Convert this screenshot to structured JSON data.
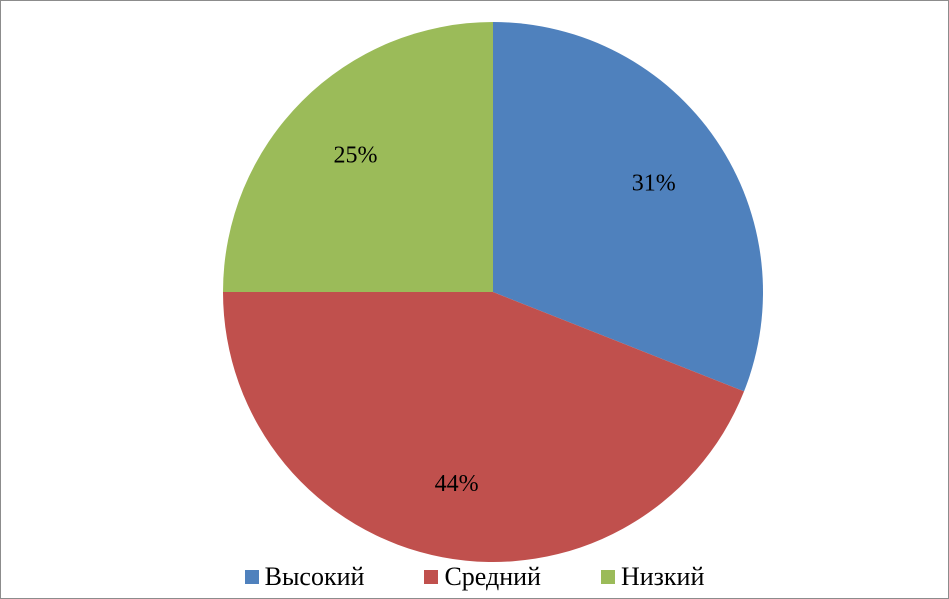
{
  "chart_data": {
    "type": "pie",
    "categories": [
      "Высокий",
      "Средний",
      "Низкий"
    ],
    "values": [
      31,
      44,
      25
    ],
    "labels": [
      "31%",
      "44%",
      "25%"
    ],
    "colors": [
      "#4F81BD",
      "#C0504D",
      "#9BBB59"
    ],
    "start_angle_deg": 0,
    "direction": "clockwise",
    "legend_position": "bottom"
  }
}
